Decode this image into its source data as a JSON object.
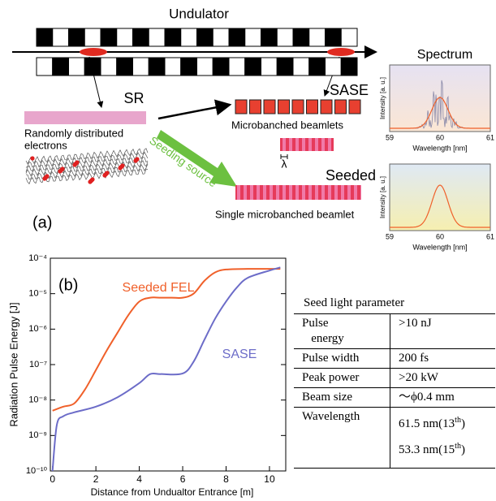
{
  "diagram": {
    "undulator": "Undulator",
    "sr": "SR",
    "sase": "SASE",
    "seeded": "Seeded",
    "spectrum": "Spectrum",
    "random": [
      "Randomly distributed",
      "electrons"
    ],
    "microbunched": "Microbanched beamlets",
    "lambda": "λ",
    "seeding_source": "Seeding source",
    "single": "Single microbanched beamlet",
    "panel": "(a)",
    "spectra": [
      {
        "ylabel": "Intensity [a. u.]",
        "xlabel": "Wavelength [nm]",
        "ticks": [
          "59",
          "60",
          "61"
        ]
      },
      {
        "ylabel": "Intensity [a. u.]",
        "xlabel": "Wavelength [nm]",
        "ticks": [
          "59",
          "60",
          "61"
        ]
      }
    ]
  },
  "chart_data": {
    "type": "line",
    "panel": "(b)",
    "ylabel": "Radiation Pulse Energy [J]",
    "xlabel": "Distance from Undualtor Entrance [m]",
    "ylog": true,
    "xlim": [
      -0.1,
      10.75
    ],
    "ylim": [
      1e-10,
      0.0001
    ],
    "xticks": [
      0,
      2,
      4,
      6,
      8,
      10
    ],
    "yticks": [
      {
        "value": 1e-10,
        "label": "10⁻¹⁰"
      },
      {
        "value": 1e-09,
        "label": "10⁻⁹"
      },
      {
        "value": 1e-08,
        "label": "10⁻⁸"
      },
      {
        "value": 1e-07,
        "label": "10⁻⁷"
      },
      {
        "value": 1e-06,
        "label": "10⁻⁶"
      },
      {
        "value": 1e-05,
        "label": "10⁻⁵"
      },
      {
        "value": 0.0001,
        "label": "10⁻⁴"
      }
    ],
    "series": [
      {
        "name": "Seeded FEL",
        "color": "#f0602a",
        "x": [
          0,
          0.5,
          1,
          1.5,
          2,
          2.5,
          3,
          3.5,
          4,
          4.5,
          5,
          5.5,
          6,
          6.5,
          7,
          7.5,
          8,
          9,
          10,
          10.5
        ],
        "values": [
          5e-09,
          6.5e-09,
          8e-09,
          2e-08,
          7e-08,
          2.5e-07,
          8e-07,
          2.5e-06,
          6e-06,
          7.7e-06,
          7.7e-06,
          7.7e-06,
          7.7e-06,
          1e-05,
          2.3e-05,
          4e-05,
          4.8e-05,
          5e-05,
          5e-05,
          5e-05
        ]
      },
      {
        "name": "SASE",
        "color": "#6c6cc8",
        "x": [
          0,
          0.2,
          0.5,
          1,
          2,
          3,
          4,
          4.5,
          5,
          6,
          6.5,
          7,
          7.5,
          8,
          8.5,
          9,
          10,
          10.5
        ],
        "values": [
          1e-10,
          2e-09,
          3.5e-09,
          4.5e-09,
          6.5e-09,
          1.2e-08,
          3e-08,
          5.4e-08,
          5.4e-08,
          5.6e-08,
          1.2e-07,
          5e-07,
          2e-06,
          6e-06,
          1.5e-05,
          2.8e-05,
          4.5e-05,
          5.5e-05
        ]
      }
    ]
  },
  "table": {
    "title": "Seed light parameter",
    "rows": [
      {
        "name": [
          "Pulse",
          "energy"
        ],
        "value": ">10 nJ"
      },
      {
        "name": [
          "Pulse width"
        ],
        "value": "200 fs"
      },
      {
        "name": [
          "Peak power"
        ],
        "value": ">20 kW"
      },
      {
        "name": [
          "Beam size"
        ],
        "value": "～ϕ0.4 mm"
      },
      {
        "name": [
          "Wavelength"
        ],
        "lines": [
          [
            "61.5 nm(13",
            "th",
            ")"
          ],
          [
            "53.3 nm(15",
            "th",
            ")"
          ]
        ]
      }
    ]
  }
}
